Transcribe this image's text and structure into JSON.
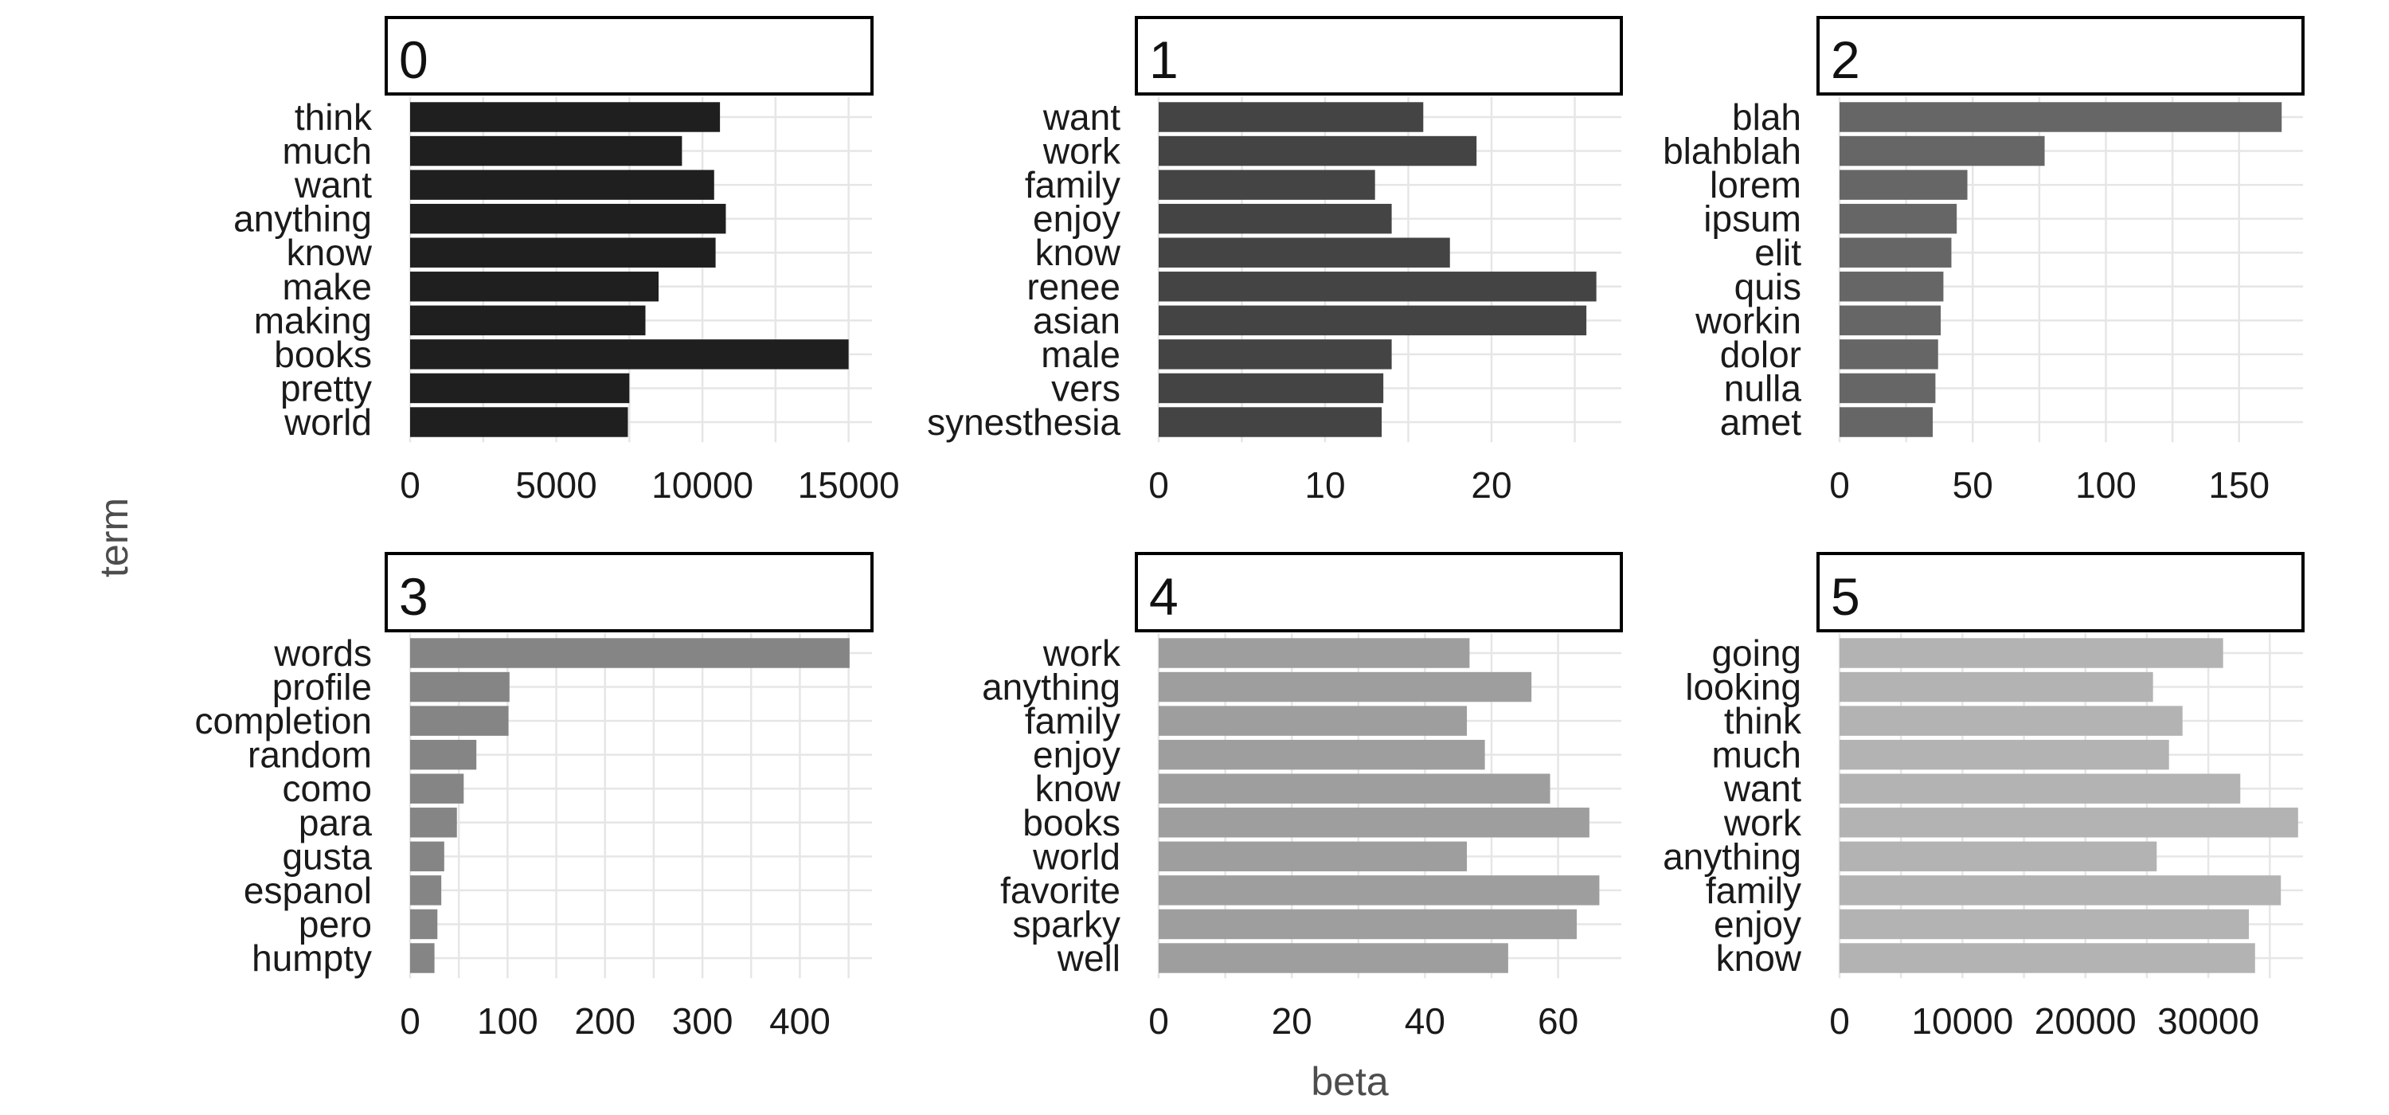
{
  "chart_data": {
    "type": "bar",
    "orientation": "horizontal",
    "xlabel": "beta",
    "ylabel": "term",
    "grid": true,
    "facets": [
      {
        "label": "0",
        "color": "#1f1f1f",
        "xlim": [
          0,
          15800
        ],
        "ticks": [
          0,
          5000,
          10000,
          15000
        ],
        "tick_labels": [
          "0",
          "5000",
          "10000",
          "15000"
        ],
        "terms": [
          "think",
          "much",
          "want",
          "anything",
          "know",
          "make",
          "making",
          "books",
          "pretty",
          "world"
        ],
        "values": [
          10600,
          9300,
          10400,
          10800,
          10450,
          8500,
          8050,
          15000,
          7500,
          7450
        ]
      },
      {
        "label": "1",
        "color": "#444444",
        "xlim": [
          0,
          27.8
        ],
        "ticks": [
          0,
          10,
          20
        ],
        "tick_labels": [
          "0",
          "10",
          "20"
        ],
        "terms": [
          "want",
          "work",
          "family",
          "enjoy",
          "know",
          "renee",
          "asian",
          "male",
          "vers",
          "synesthesia"
        ],
        "values": [
          15.9,
          19.1,
          13.0,
          14.0,
          17.5,
          26.3,
          25.7,
          14.0,
          13.5,
          13.4
        ]
      },
      {
        "label": "2",
        "color": "#666666",
        "xlim": [
          0,
          174
        ],
        "ticks": [
          0,
          50,
          100,
          150
        ],
        "tick_labels": [
          "0",
          "50",
          "100",
          "150"
        ],
        "terms": [
          "blah",
          "blahblah",
          "lorem",
          "ipsum",
          "elit",
          "quis",
          "workin",
          "dolor",
          "nulla",
          "amet"
        ],
        "values": [
          166,
          77,
          48,
          44,
          42,
          39,
          38,
          37,
          36,
          35
        ]
      },
      {
        "label": "3",
        "color": "#858585",
        "xlim": [
          0,
          474
        ],
        "ticks": [
          0,
          100,
          200,
          300,
          400
        ],
        "tick_labels": [
          "0",
          "100",
          "200",
          "300",
          "400"
        ],
        "terms": [
          "words",
          "profile",
          "completion",
          "random",
          "como",
          "para",
          "gusta",
          "espanol",
          "pero",
          "humpty"
        ],
        "values": [
          451,
          102,
          101,
          68,
          55,
          48,
          35,
          32,
          28,
          25
        ]
      },
      {
        "label": "4",
        "color": "#9e9e9e",
        "xlim": [
          0,
          69.5
        ],
        "ticks": [
          0,
          20,
          40,
          60
        ],
        "tick_labels": [
          "0",
          "20",
          "40",
          "60"
        ],
        "terms": [
          "work",
          "anything",
          "family",
          "enjoy",
          "know",
          "books",
          "world",
          "favorite",
          "sparky",
          "well"
        ],
        "values": [
          46.7,
          56.0,
          46.3,
          49.0,
          58.8,
          64.7,
          46.3,
          66.2,
          62.8,
          52.5
        ]
      },
      {
        "label": "5",
        "color": "#b3b3b3",
        "xlim": [
          0,
          37700
        ],
        "ticks": [
          0,
          10000,
          20000,
          30000
        ],
        "tick_labels": [
          "0",
          "10000",
          "20000",
          "30000"
        ],
        "terms": [
          "going",
          "looking",
          "think",
          "much",
          "want",
          "work",
          "anything",
          "family",
          "enjoy",
          "know"
        ],
        "values": [
          31200,
          25500,
          27900,
          26800,
          32600,
          37300,
          25800,
          35900,
          33300,
          33800
        ]
      }
    ]
  }
}
